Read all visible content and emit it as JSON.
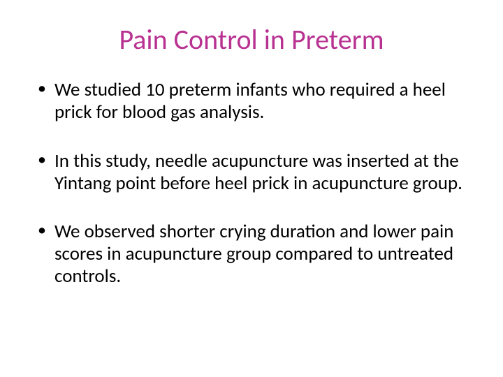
{
  "title": {
    "text": "Pain Control in Preterm",
    "color": "#b83292",
    "fontsize": 40
  },
  "bullets": [
    {
      "text": "We studied 10 preterm infants who required a heel prick for blood gas analysis."
    },
    {
      "text": "In this study, needle acupuncture was inserted at the Yintang point before heel prick in acupuncture group."
    },
    {
      "text": "We observed shorter crying duration and lower pain scores in acupuncture group compared to untreated controls."
    }
  ],
  "styling": {
    "background_color": "#ffffff",
    "body_text_color": "#000000",
    "body_fontsize": 27,
    "bullet_spacing": 38
  }
}
